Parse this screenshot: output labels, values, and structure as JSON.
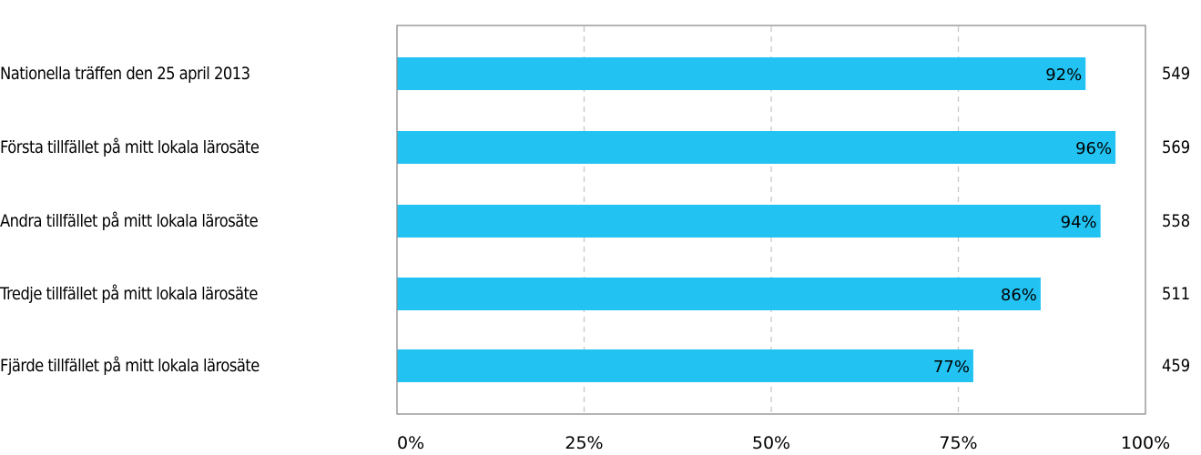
{
  "chart_data": {
    "type": "bar",
    "orientation": "horizontal",
    "categories": [
      "Nationella träffen den 25 april 2013",
      "Första tillfället på mitt lokala lärosäte",
      "Andra tillfället på mitt lokala lärosäte",
      "Tredje tillfället på mitt lokala lärosäte",
      "Fjärde tillfället på mitt lokala lärosäte"
    ],
    "values": [
      92,
      96,
      94,
      86,
      77
    ],
    "value_labels": [
      "92%",
      "96%",
      "94%",
      "86%",
      "77%"
    ],
    "counts": [
      "549",
      "569",
      "558",
      "511",
      "459"
    ],
    "x_ticks": [
      "0%",
      "25%",
      "50%",
      "75%",
      "100%"
    ],
    "xlim": [
      0,
      100
    ],
    "grid": "vertical dashed",
    "legend": "none",
    "title": "",
    "xlabel": "",
    "ylabel": "",
    "colors": {
      "bar": "#22C3F3",
      "grid": "#C8C8C8",
      "frame": "#8C8C8C"
    }
  }
}
